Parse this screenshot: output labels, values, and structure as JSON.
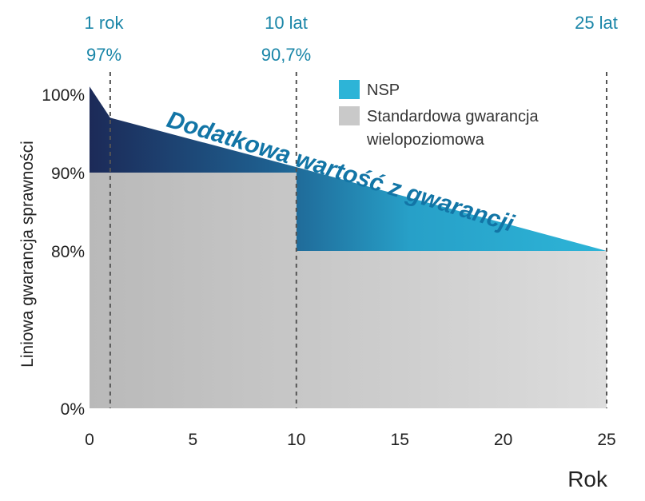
{
  "chart_data": {
    "type": "area",
    "title": "",
    "xlabel": "Rok",
    "ylabel": "Liniowa gwarancja sprawności",
    "xlim": [
      0,
      25
    ],
    "x_ticks": [
      "0",
      "5",
      "10",
      "15",
      "20",
      "25"
    ],
    "y_ticks": [
      "0%",
      "80%",
      "90%",
      "100%"
    ],
    "axis_break": "y axis compressed between 0% and 80%",
    "grid": false,
    "legend_position": "top-right",
    "series": [
      {
        "name": "NSP",
        "color": "#2aa6cb",
        "x": [
          0,
          1,
          10,
          25
        ],
        "y": [
          101,
          97,
          90.7,
          80
        ]
      },
      {
        "name": "Standardowa gwarancja wielopoziomowa",
        "color": "#c9c9c9",
        "x": [
          0,
          10,
          10,
          25
        ],
        "y": [
          90,
          90,
          80,
          80
        ]
      }
    ],
    "reference_lines": [
      {
        "x": 1,
        "label_top": "1 rok",
        "label_value": "97%"
      },
      {
        "x": 10,
        "label_top": "10 lat",
        "label_value": "90,7%"
      },
      {
        "x": 25,
        "label_top": "25 lat",
        "label_value": ""
      }
    ],
    "annotation": "Dodatkowa wartość z gwarancji",
    "legend": {
      "nsp_label": "NSP",
      "standard_label_line1": "Standardowa gwarancja",
      "standard_label_line2": "wielopoziomowa"
    },
    "colors": {
      "nsp_dark": "#1c2a58",
      "nsp_light": "#2db4d7",
      "standard": "#c9c9c9",
      "annotation": "#1275a6",
      "top_labels": "#1a86a8"
    }
  }
}
